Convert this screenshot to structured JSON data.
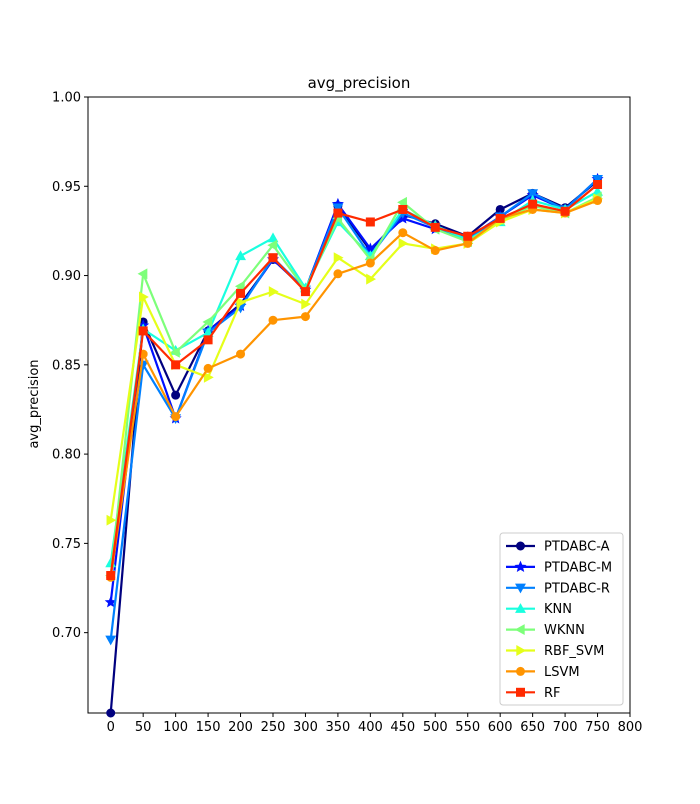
{
  "chart_data": {
    "type": "line",
    "title": "avg_precision",
    "xlabel": "",
    "ylabel": "avg_precision",
    "xlim": [
      -35,
      800
    ],
    "ylim": [
      0.655,
      1.0
    ],
    "x_ticks": [
      0,
      50,
      100,
      150,
      200,
      250,
      300,
      350,
      400,
      450,
      500,
      550,
      600,
      650,
      700,
      750,
      800
    ],
    "y_ticks": [
      0.7,
      0.75,
      0.8,
      0.85,
      0.9,
      0.95,
      1.0
    ],
    "x_tick_labels": [
      "0",
      "50",
      "100",
      "150",
      "200",
      "250",
      "300",
      "350",
      "400",
      "450",
      "500",
      "550",
      "600",
      "650",
      "700",
      "750",
      "800"
    ],
    "y_tick_labels": [
      "0.70",
      "0.75",
      "0.80",
      "0.85",
      "0.90",
      "0.95",
      "1.00"
    ],
    "grid": false,
    "legend_position": "lower-right",
    "x": [
      0,
      50,
      100,
      150,
      200,
      250,
      300,
      350,
      400,
      450,
      500,
      550,
      600,
      650,
      700,
      750
    ],
    "series": [
      {
        "name": "PTDABC-A",
        "color": "#00007f",
        "marker": "circle",
        "values": [
          0.655,
          0.874,
          0.833,
          0.869,
          0.884,
          0.909,
          0.892,
          0.939,
          0.914,
          0.934,
          0.929,
          0.922,
          0.937,
          0.946,
          0.938,
          0.953
        ]
      },
      {
        "name": "PTDABC-M",
        "color": "#0010ff",
        "marker": "star",
        "values": [
          0.717,
          0.872,
          0.82,
          0.869,
          0.883,
          0.909,
          0.892,
          0.94,
          0.915,
          0.932,
          0.926,
          0.921,
          0.933,
          0.945,
          0.937,
          0.954
        ]
      },
      {
        "name": "PTDABC-R",
        "color": "#0080ff",
        "marker": "triangle-down",
        "values": [
          0.696,
          0.85,
          0.82,
          0.868,
          0.882,
          0.91,
          0.892,
          0.938,
          0.911,
          0.935,
          0.927,
          0.92,
          0.933,
          0.946,
          0.937,
          0.954
        ]
      },
      {
        "name": "KNN",
        "color": "#19ffdf",
        "marker": "triangle-up",
        "values": [
          0.739,
          0.87,
          0.858,
          0.868,
          0.911,
          0.921,
          0.893,
          0.93,
          0.911,
          0.937,
          0.928,
          0.92,
          0.93,
          0.942,
          0.937,
          0.947
        ]
      },
      {
        "name": "WKNN",
        "color": "#7dff7a",
        "marker": "triangle-left",
        "values": [
          0.732,
          0.901,
          0.857,
          0.874,
          0.894,
          0.917,
          0.892,
          0.932,
          0.909,
          0.941,
          0.926,
          0.919,
          0.931,
          0.939,
          0.935,
          0.944
        ]
      },
      {
        "name": "RBF_SVM",
        "color": "#e5ff1a",
        "marker": "triangle-right",
        "values": [
          0.763,
          0.888,
          0.85,
          0.843,
          0.885,
          0.891,
          0.884,
          0.91,
          0.898,
          0.918,
          0.915,
          0.918,
          0.93,
          0.937,
          0.935,
          0.943
        ]
      },
      {
        "name": "LSVM",
        "color": "#ff9400",
        "marker": "circle",
        "values": [
          0.731,
          0.856,
          0.821,
          0.848,
          0.856,
          0.875,
          0.877,
          0.901,
          0.907,
          0.924,
          0.914,
          0.918,
          0.932,
          0.937,
          0.935,
          0.942
        ]
      },
      {
        "name": "RF",
        "color": "#ff2a00",
        "marker": "square",
        "values": [
          0.732,
          0.869,
          0.85,
          0.864,
          0.89,
          0.91,
          0.891,
          0.935,
          0.93,
          0.937,
          0.927,
          0.922,
          0.932,
          0.94,
          0.936,
          0.951
        ]
      }
    ]
  }
}
